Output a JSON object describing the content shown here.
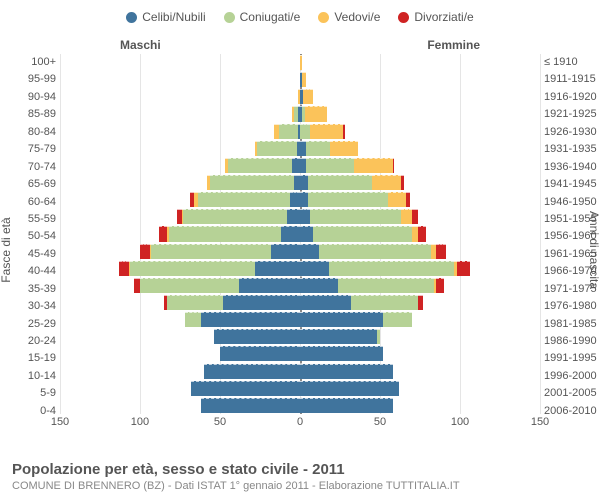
{
  "chart": {
    "type": "population-pyramid",
    "legend": [
      {
        "label": "Celibi/Nubili",
        "color": "#40749d"
      },
      {
        "label": "Coniugati/e",
        "color": "#b6d296"
      },
      {
        "label": "Vedovi/e",
        "color": "#fbc35a"
      },
      {
        "label": "Divorziati/e",
        "color": "#cf2323"
      }
    ],
    "side_labels": {
      "male": "Maschi",
      "female": "Femmine"
    },
    "y_label_left": "Fasce di età",
    "y_label_right": "Anni di nascita",
    "x_axis": {
      "max": 150,
      "ticks": [
        150,
        100,
        50,
        0,
        50,
        100,
        150
      ]
    },
    "age_labels": [
      "100+",
      "95-99",
      "90-94",
      "85-89",
      "80-84",
      "75-79",
      "70-74",
      "65-69",
      "60-64",
      "55-59",
      "50-54",
      "45-49",
      "40-44",
      "35-39",
      "30-34",
      "25-29",
      "20-24",
      "15-19",
      "10-14",
      "5-9",
      "0-4"
    ],
    "birth_labels": [
      "≤ 1910",
      "1911-1915",
      "1916-1920",
      "1921-1925",
      "1926-1930",
      "1931-1935",
      "1936-1940",
      "1941-1945",
      "1946-1950",
      "1951-1955",
      "1956-1960",
      "1961-1965",
      "1966-1970",
      "1971-1975",
      "1976-1980",
      "1981-1985",
      "1986-1990",
      "1991-1995",
      "1996-2000",
      "2001-2005",
      "2006-2010"
    ],
    "rows": [
      {
        "m": {
          "s": 0,
          "c": 0,
          "w": 0,
          "d": 0
        },
        "f": {
          "s": 0,
          "c": 0,
          "w": 1,
          "d": 0
        }
      },
      {
        "m": {
          "s": 0,
          "c": 0,
          "w": 0,
          "d": 0
        },
        "f": {
          "s": 1,
          "c": 0,
          "w": 3,
          "d": 0
        }
      },
      {
        "m": {
          "s": 0,
          "c": 0,
          "w": 1,
          "d": 0
        },
        "f": {
          "s": 2,
          "c": 0,
          "w": 6,
          "d": 0
        }
      },
      {
        "m": {
          "s": 1,
          "c": 3,
          "w": 1,
          "d": 0
        },
        "f": {
          "s": 1,
          "c": 2,
          "w": 14,
          "d": 0
        }
      },
      {
        "m": {
          "s": 1,
          "c": 12,
          "w": 3,
          "d": 0
        },
        "f": {
          "s": 0,
          "c": 6,
          "w": 21,
          "d": 1
        }
      },
      {
        "m": {
          "s": 2,
          "c": 25,
          "w": 1,
          "d": 0
        },
        "f": {
          "s": 4,
          "c": 15,
          "w": 17,
          "d": 0
        }
      },
      {
        "m": {
          "s": 5,
          "c": 40,
          "w": 2,
          "d": 0
        },
        "f": {
          "s": 4,
          "c": 30,
          "w": 24,
          "d": 1
        }
      },
      {
        "m": {
          "s": 4,
          "c": 52,
          "w": 2,
          "d": 0
        },
        "f": {
          "s": 5,
          "c": 40,
          "w": 18,
          "d": 2
        }
      },
      {
        "m": {
          "s": 6,
          "c": 58,
          "w": 2,
          "d": 3
        },
        "f": {
          "s": 5,
          "c": 50,
          "w": 11,
          "d": 3
        }
      },
      {
        "m": {
          "s": 8,
          "c": 65,
          "w": 1,
          "d": 3
        },
        "f": {
          "s": 6,
          "c": 57,
          "w": 7,
          "d": 4
        }
      },
      {
        "m": {
          "s": 12,
          "c": 70,
          "w": 1,
          "d": 5
        },
        "f": {
          "s": 8,
          "c": 62,
          "w": 4,
          "d": 5
        }
      },
      {
        "m": {
          "s": 18,
          "c": 75,
          "w": 1,
          "d": 6
        },
        "f": {
          "s": 12,
          "c": 70,
          "w": 3,
          "d": 6
        }
      },
      {
        "m": {
          "s": 28,
          "c": 78,
          "w": 1,
          "d": 6
        },
        "f": {
          "s": 18,
          "c": 78,
          "w": 2,
          "d": 8
        }
      },
      {
        "m": {
          "s": 38,
          "c": 62,
          "w": 0,
          "d": 4
        },
        "f": {
          "s": 24,
          "c": 60,
          "w": 1,
          "d": 5
        }
      },
      {
        "m": {
          "s": 48,
          "c": 35,
          "w": 0,
          "d": 2
        },
        "f": {
          "s": 32,
          "c": 42,
          "w": 0,
          "d": 3
        }
      },
      {
        "m": {
          "s": 62,
          "c": 10,
          "w": 0,
          "d": 0
        },
        "f": {
          "s": 52,
          "c": 18,
          "w": 0,
          "d": 0
        }
      },
      {
        "m": {
          "s": 54,
          "c": 0,
          "w": 0,
          "d": 0
        },
        "f": {
          "s": 48,
          "c": 2,
          "w": 0,
          "d": 0
        }
      },
      {
        "m": {
          "s": 50,
          "c": 0,
          "w": 0,
          "d": 0
        },
        "f": {
          "s": 52,
          "c": 0,
          "w": 0,
          "d": 0
        }
      },
      {
        "m": {
          "s": 60,
          "c": 0,
          "w": 0,
          "d": 0
        },
        "f": {
          "s": 58,
          "c": 0,
          "w": 0,
          "d": 0
        }
      },
      {
        "m": {
          "s": 68,
          "c": 0,
          "w": 0,
          "d": 0
        },
        "f": {
          "s": 62,
          "c": 0,
          "w": 0,
          "d": 0
        }
      },
      {
        "m": {
          "s": 62,
          "c": 0,
          "w": 0,
          "d": 0
        },
        "f": {
          "s": 58,
          "c": 0,
          "w": 0,
          "d": 0
        }
      }
    ],
    "caption": {
      "title": "Popolazione per età, sesso e stato civile - 2011",
      "subtitle": "COMUNE DI BRENNERO (BZ) - Dati ISTAT 1° gennaio 2011 - Elaborazione TUTTITALIA.IT"
    },
    "background_color": "#ffffff",
    "grid_color": "#e5e5e5"
  }
}
